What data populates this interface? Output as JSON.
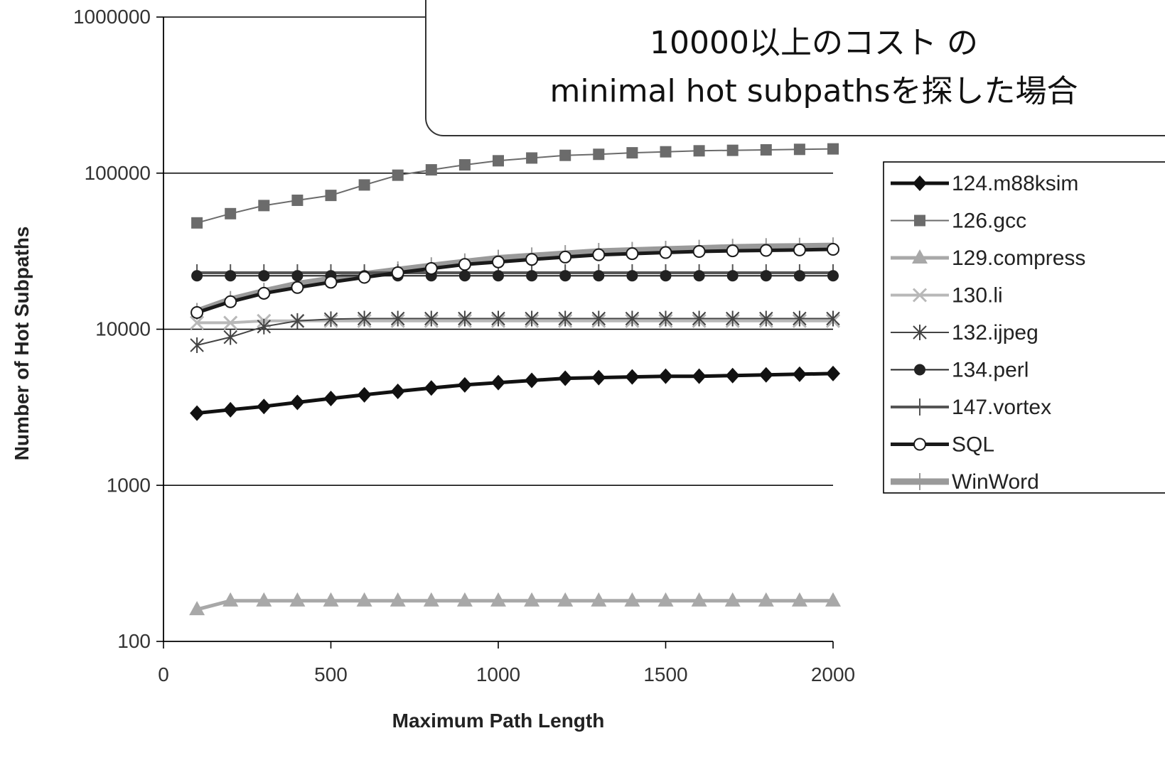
{
  "callout": {
    "lines": [
      "",
      "10000以上のコスト の",
      "minimal hot subpathsを探した場合"
    ]
  },
  "chart_data": {
    "type": "line",
    "title": "",
    "xlabel": "Maximum Path Length",
    "ylabel": "Number of Hot Subpaths",
    "xlim": [
      0,
      2000
    ],
    "ylim": [
      100,
      1000000
    ],
    "yscale": "log",
    "xticks": [
      0,
      500,
      1000,
      1500,
      2000
    ],
    "yticks": [
      100,
      1000,
      10000,
      100000,
      1000000
    ],
    "x": [
      100,
      200,
      300,
      400,
      500,
      600,
      700,
      800,
      900,
      1000,
      1100,
      1200,
      1300,
      1400,
      1500,
      1600,
      1700,
      1800,
      1900,
      2000
    ],
    "grid": "horizontal",
    "legend_position": "right",
    "series": [
      {
        "name": "124.m88ksim",
        "color": "#111111",
        "marker": "diamond",
        "width": 5,
        "values": [
          2900,
          3050,
          3200,
          3400,
          3600,
          3800,
          4000,
          4200,
          4400,
          4550,
          4700,
          4850,
          4900,
          4950,
          5000,
          5000,
          5050,
          5100,
          5150,
          5200
        ]
      },
      {
        "name": "126.gcc",
        "color": "#6b6b6b",
        "marker": "square",
        "width": 2,
        "values": [
          48000,
          55000,
          62000,
          67000,
          72000,
          84000,
          97000,
          105000,
          113000,
          120000,
          125000,
          130000,
          132000,
          135000,
          137000,
          139000,
          140000,
          141000,
          142000,
          143000
        ]
      },
      {
        "name": "129.compress",
        "color": "#a8a8a8",
        "marker": "triangle",
        "width": 5,
        "values": [
          160,
          182,
          182,
          182,
          182,
          182,
          182,
          182,
          182,
          182,
          182,
          182,
          182,
          182,
          182,
          182,
          182,
          182,
          182,
          182
        ]
      },
      {
        "name": "130.li",
        "color": "#b8b8b8",
        "marker": "x",
        "width": 4,
        "values": [
          11000,
          11000,
          11300,
          11300,
          11300,
          11300,
          11300,
          11300,
          11300,
          11300,
          11300,
          11300,
          11300,
          11300,
          11300,
          11300,
          11300,
          11300,
          11300,
          11300
        ]
      },
      {
        "name": "132.ijpeg",
        "color": "#444444",
        "marker": "star",
        "width": 2,
        "values": [
          7900,
          8900,
          10400,
          11300,
          11600,
          11700,
          11700,
          11700,
          11700,
          11700,
          11700,
          11700,
          11700,
          11700,
          11700,
          11700,
          11700,
          11700,
          11700,
          11700
        ]
      },
      {
        "name": "134.perl",
        "color": "#222222",
        "marker": "circle",
        "width": 2,
        "values": [
          22000,
          22000,
          22000,
          22000,
          22000,
          22000,
          22000,
          22000,
          22000,
          22000,
          22000,
          22000,
          22000,
          22000,
          22000,
          22000,
          22000,
          22000,
          22000,
          22000
        ]
      },
      {
        "name": "147.vortex",
        "color": "#555555",
        "marker": "plus",
        "width": 4,
        "values": [
          23000,
          23000,
          23000,
          23000,
          23000,
          23000,
          23000,
          23000,
          23000,
          23000,
          23000,
          23000,
          23000,
          23000,
          23000,
          23000,
          23000,
          23000,
          23000,
          23000
        ]
      },
      {
        "name": "SQL",
        "color": "#1a1a1a",
        "marker": "open-circle",
        "width": 5,
        "values": [
          12800,
          15000,
          17000,
          18500,
          20000,
          21500,
          23000,
          24500,
          26000,
          27000,
          28000,
          29000,
          30000,
          30500,
          31000,
          31500,
          31800,
          32000,
          32200,
          32500
        ]
      },
      {
        "name": "WinWord",
        "color": "#9a9a9a",
        "marker": "plus",
        "width": 9,
        "values": [
          13000,
          15500,
          17500,
          19500,
          21000,
          22500,
          24000,
          25500,
          27000,
          28500,
          29500,
          30500,
          31500,
          32000,
          32500,
          33000,
          33500,
          33800,
          34000,
          34200
        ]
      }
    ]
  }
}
